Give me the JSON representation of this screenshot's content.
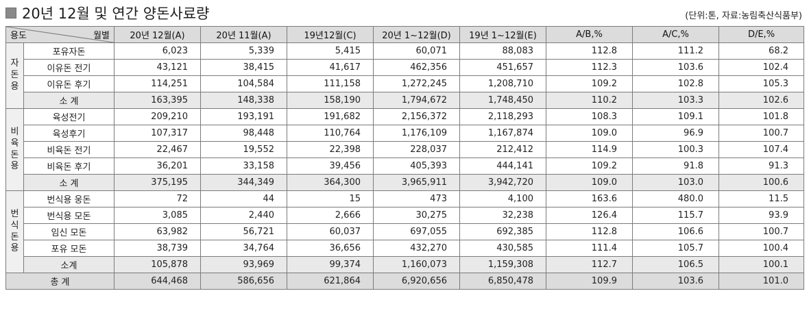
{
  "title": "20년 12월 및 연간 양돈사료량",
  "unit_note": "(단위:톤,  자료:농림축산식품부)",
  "corner": {
    "top": "월별",
    "bottom": "용도"
  },
  "columns": [
    "20년 12월(A)",
    "20년 11월(A)",
    "19년12월(C)",
    "20년 1~12월(D)",
    "19년 1~12월(E)",
    "A/B,%",
    "A/C,%",
    "D/E,%"
  ],
  "groups": [
    {
      "category": "자돈용",
      "rows": [
        {
          "label": "포유자돈",
          "values": [
            "6,023",
            "5,339",
            "5,415",
            "60,071",
            "88,083",
            "112.8",
            "111.2",
            "68.2"
          ]
        },
        {
          "label": "이유돈 전기",
          "values": [
            "43,121",
            "38,415",
            "41,617",
            "462,356",
            "451,657",
            "112.3",
            "103.6",
            "102.4"
          ]
        },
        {
          "label": "이유돈 후기",
          "values": [
            "114,251",
            "104,584",
            "111,158",
            "1,272,245",
            "1,208,710",
            "109.2",
            "102.8",
            "105.3"
          ]
        }
      ],
      "subtotal": {
        "label": "소 계",
        "values": [
          "163,395",
          "148,338",
          "158,190",
          "1,794,672",
          "1,748,450",
          "110.2",
          "103.3",
          "102.6"
        ]
      }
    },
    {
      "category": "비육돈용",
      "rows": [
        {
          "label": "육성전기",
          "values": [
            "209,210",
            "193,191",
            "191,682",
            "2,156,372",
            "2,118,293",
            "108.3",
            "109.1",
            "101.8"
          ]
        },
        {
          "label": "육성후기",
          "values": [
            "107,317",
            "98,448",
            "110,764",
            "1,176,109",
            "1,167,874",
            "109.0",
            "96.9",
            "100.7"
          ]
        },
        {
          "label": "비육돈 전기",
          "values": [
            "22,467",
            "19,552",
            "22,398",
            "228,037",
            "212,412",
            "114.9",
            "100.3",
            "107.4"
          ]
        },
        {
          "label": "비육돈 후기",
          "values": [
            "36,201",
            "33,158",
            "39,456",
            "405,393",
            "444,141",
            "109.2",
            "91.8",
            "91.3"
          ]
        }
      ],
      "subtotal": {
        "label": "소 계",
        "values": [
          "375,195",
          "344,349",
          "364,300",
          "3,965,911",
          "3,942,720",
          "109.0",
          "103.0",
          "100.6"
        ]
      }
    },
    {
      "category": "번식돈용",
      "rows": [
        {
          "label": "번식용 웅돈",
          "values": [
            "72",
            "44",
            "15",
            "473",
            "4,100",
            "163.6",
            "480.0",
            "11.5"
          ]
        },
        {
          "label": "번식용 모돈",
          "values": [
            "3,085",
            "2,440",
            "2,666",
            "30,275",
            "32,238",
            "126.4",
            "115.7",
            "93.9"
          ]
        },
        {
          "label": "임신 모돈",
          "values": [
            "63,982",
            "56,721",
            "60,037",
            "697,055",
            "692,385",
            "112.8",
            "106.6",
            "100.7"
          ]
        },
        {
          "label": "포유 모돈",
          "values": [
            "38,739",
            "34,764",
            "36,656",
            "432,270",
            "430,585",
            "111.4",
            "105.7",
            "100.4"
          ]
        }
      ],
      "subtotal": {
        "label": "소계",
        "values": [
          "105,878",
          "93,969",
          "99,374",
          "1,160,073",
          "1,159,308",
          "112.7",
          "106.5",
          "100.1"
        ]
      }
    }
  ],
  "total": {
    "label": "총 계",
    "values": [
      "644,468",
      "586,656",
      "621,864",
      "6,920,656",
      "6,850,478",
      "109.9",
      "103.6",
      "101.0"
    ]
  }
}
